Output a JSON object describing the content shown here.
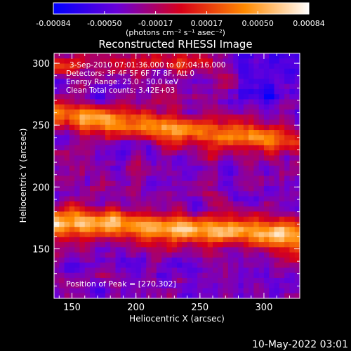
{
  "colorbar": {
    "ticks": [
      "-0.00084",
      "-0.00050",
      "-0.00017",
      "0.00017",
      "0.00050",
      "0.00084"
    ],
    "units": "(photons cm⁻² s⁻¹ asec⁻²)",
    "colors": [
      "#0000ff",
      "#6a00d8",
      "#d80018",
      "#ff8a00",
      "#ffffff"
    ]
  },
  "chart_data": {
    "type": "heatmap",
    "title": "Reconstructed RHESSI Image",
    "xlabel": "Heliocentric X (arcsec)",
    "ylabel": "Heliocentric Y (arcsec)",
    "xlim": [
      136,
      328
    ],
    "ylim": [
      110,
      308
    ],
    "xticks": [
      150,
      200,
      250,
      300
    ],
    "yticks": [
      150,
      200,
      250,
      300
    ],
    "vmin": -0.00084,
    "vmax": 0.00084,
    "annotations": [
      "3-Sep-2010 07:01:36.000 to 07:04:16.000",
      "Detectors: 3F 4F 5F 6F 7F 8F, Att 0",
      "Energy Range: 25.0 - 50.0 keV",
      "Clean     Total counts: 3.42E+03"
    ],
    "peak_label": "Position of Peak = [270,302]",
    "peak": [
      270,
      302
    ]
  },
  "footer": {
    "timestamp": "10-May-2022 03:01"
  }
}
